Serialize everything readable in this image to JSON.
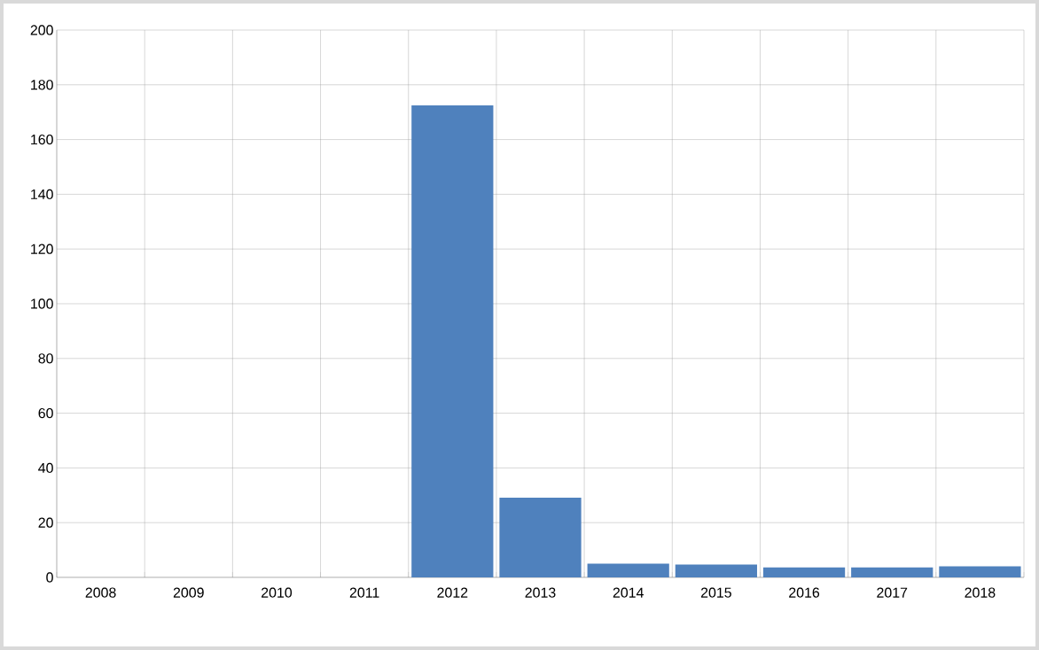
{
  "chart_data": {
    "type": "bar",
    "categories": [
      "2008",
      "2009",
      "2010",
      "2011",
      "2012",
      "2013",
      "2014",
      "2015",
      "2016",
      "2017",
      "2018"
    ],
    "values": [
      null,
      null,
      null,
      null,
      172.5,
      29.1,
      5.0,
      4.7,
      3.6,
      3.6,
      4.0
    ],
    "color": "#4f81bd",
    "ylim": [
      0,
      200
    ],
    "yticks": [
      0,
      20,
      40,
      60,
      80,
      100,
      120,
      140,
      160,
      180,
      200
    ],
    "grid": true
  }
}
